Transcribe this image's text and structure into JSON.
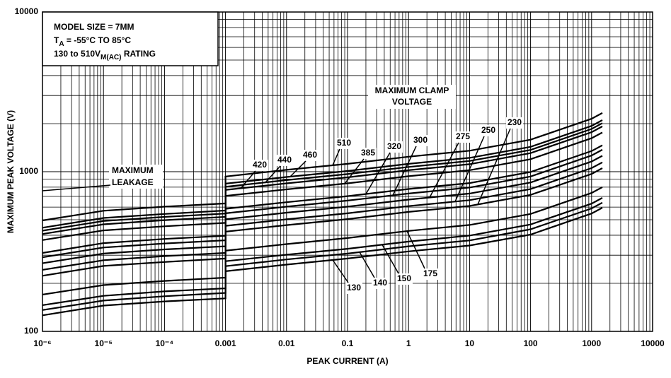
{
  "chart_data": {
    "type": "line",
    "x_label": "PEAK CURRENT (A)",
    "y_label": "MAXIMUM PEAK VOLTAGE (V)",
    "log_x": true,
    "log_y": true,
    "grid": true,
    "minor_grid": true,
    "line_color": "#000000",
    "xlim": [
      1e-06,
      10000
    ],
    "ylim": [
      100,
      10000
    ],
    "xticks": [
      {
        "value": 1e-06,
        "label": "10⁻⁶"
      },
      {
        "value": 1e-05,
        "label": "10⁻⁵"
      },
      {
        "value": 0.0001,
        "label": "10⁻⁴"
      },
      0.001,
      0.01,
      0.1,
      1,
      10,
      100,
      1000,
      10000
    ],
    "yticks": [
      100,
      1000,
      10000
    ],
    "x": [
      1e-06,
      1e-05,
      0.0001,
      0.001,
      0.001,
      0.01,
      0.1,
      1,
      10,
      100,
      1000,
      1500
    ],
    "series": [
      {
        "name": "130",
        "values": [
          126,
          145,
          154,
          161,
          238,
          262,
          286,
          317,
          345,
          404,
          547,
          595
        ]
      },
      {
        "name": "140",
        "values": [
          136,
          156,
          166,
          174,
          256,
          282,
          307,
          341,
          371,
          436,
          589,
          640
        ]
      },
      {
        "name": "150",
        "values": [
          146,
          167,
          178,
          186,
          275,
          302,
          329,
          365,
          398,
          467,
          631,
          686
        ]
      },
      {
        "name": "175",
        "values": [
          170,
          195,
          207,
          217,
          320,
          352,
          384,
          426,
          464,
          544,
          736,
          800
        ]
      },
      {
        "name": "230",
        "values": [
          223,
          257,
          272,
          286,
          421,
          463,
          505,
          560,
          610,
          716,
          968,
          1052
        ]
      },
      {
        "name": "250",
        "values": [
          243,
          279,
          296,
          310,
          458,
          503,
          549,
          609,
          663,
          778,
          1053,
          1144
        ]
      },
      {
        "name": "275",
        "values": [
          267,
          307,
          326,
          341,
          503,
          554,
          604,
          669,
          730,
          856,
          1158,
          1258
        ]
      },
      {
        "name": "300",
        "values": [
          291,
          335,
          355,
          372,
          549,
          604,
          659,
          730,
          796,
          933,
          1263,
          1373
        ]
      },
      {
        "name": "320",
        "values": [
          310,
          357,
          379,
          397,
          586,
          644,
          703,
          779,
          849,
          996,
          1347,
          1464
        ]
      },
      {
        "name": "385",
        "values": [
          373,
          429,
          455,
          478,
          705,
          775,
          845,
          937,
          1022,
          1198,
          1621,
          1761
        ]
      },
      {
        "name": "420",
        "values": [
          407,
          468,
          497,
          521,
          769,
          845,
          922,
          1022,
          1114,
          1307,
          1768,
          1921
        ]
      },
      {
        "name": "440",
        "values": [
          427,
          491,
          521,
          547,
          805,
          886,
          966,
          1071,
          1168,
          1369,
          1852,
          2013
        ]
      },
      {
        "name": "460",
        "values": [
          446,
          513,
          544,
          571,
          842,
          926,
          1010,
          1120,
          1221,
          1431,
          1936,
          2104
        ]
      },
      {
        "name": "510",
        "values": [
          495,
          569,
          604,
          633,
          933,
          1027,
          1120,
          1241,
          1353,
          1586,
          2146,
          2333
        ]
      }
    ],
    "clamp_label": [
      "MAXIMUM CLAMP",
      "VOLTAGE"
    ],
    "leakage_label": [
      "MAXIMUM",
      "LEAKAGE"
    ],
    "info_lines": [
      [
        {
          "t": "MODEL SIZE = 7MM"
        }
      ],
      [
        {
          "t": "T"
        },
        {
          "t": "A",
          "sub": true
        },
        {
          "t": " = -55°C TO 85°C"
        }
      ],
      [
        {
          "t": "130 to 510V"
        },
        {
          "t": "M(AC)",
          "sub": true
        },
        {
          "t": " RATING"
        }
      ]
    ]
  }
}
